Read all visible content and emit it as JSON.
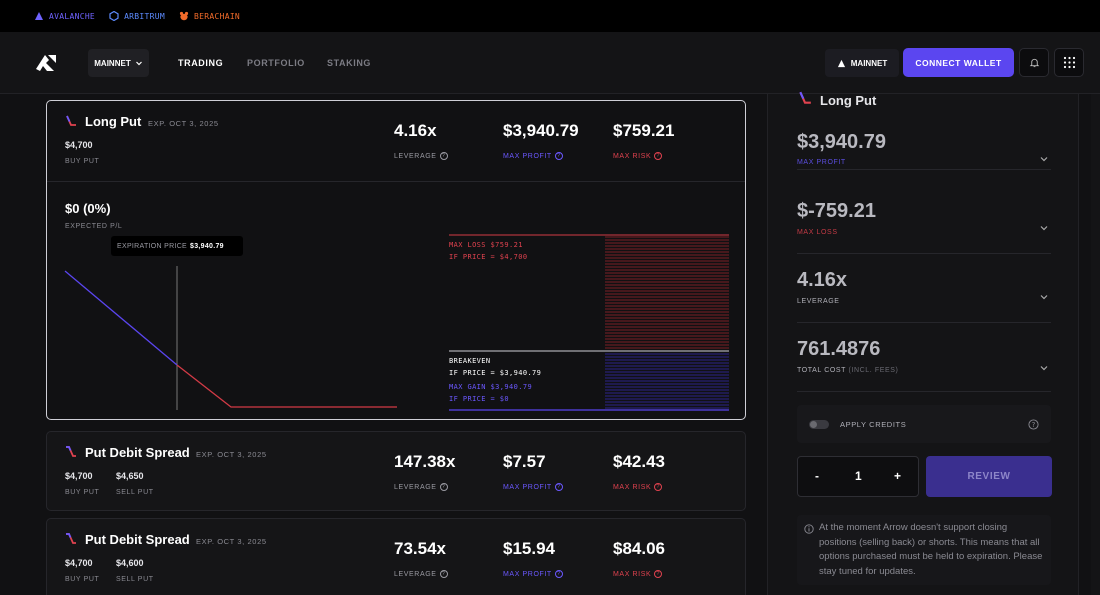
{
  "chains": [
    {
      "label": "AVALANCHE",
      "color": "#6f63ff",
      "icon": "avalanche-icon"
    },
    {
      "label": "ARBITRUM",
      "color": "#5d8bff",
      "icon": "arbitrum-icon"
    },
    {
      "label": "BERACHAIN",
      "color": "#f26b2a",
      "icon": "berachain-icon"
    }
  ],
  "header": {
    "network_button": "MAINNET",
    "nav": [
      "TRADING",
      "PORTFOLIO",
      "STAKING"
    ],
    "network_pill": "MAINNET",
    "connect": "CONNECT WALLET"
  },
  "cards": [
    {
      "title": "Long Put",
      "expiry": "EXP. OCT 3, 2025",
      "legs": [
        {
          "strike": "$4,700",
          "label": "BUY PUT"
        }
      ],
      "leverage": "4.16x",
      "leverage_label": "LEVERAGE",
      "max_profit": "$3,940.79",
      "max_profit_label": "MAX PROFIT",
      "max_risk": "$759.21",
      "max_risk_label": "MAX RISK"
    },
    {
      "title": "Put Debit Spread",
      "expiry": "EXP. OCT 3, 2025",
      "legs": [
        {
          "strike": "$4,700",
          "label": "BUY PUT"
        },
        {
          "strike": "$4,650",
          "label": "SELL PUT"
        }
      ],
      "leverage": "147.38x",
      "leverage_label": "LEVERAGE",
      "max_profit": "$7.57",
      "max_profit_label": "MAX PROFIT",
      "max_risk": "$42.43",
      "max_risk_label": "MAX RISK"
    },
    {
      "title": "Put Debit Spread",
      "expiry": "EXP. OCT 3, 2025",
      "legs": [
        {
          "strike": "$4,700",
          "label": "BUY PUT"
        },
        {
          "strike": "$4,600",
          "label": "SELL PUT"
        }
      ],
      "leverage": "73.54x",
      "leverage_label": "LEVERAGE",
      "max_profit": "$15.94",
      "max_profit_label": "MAX PROFIT",
      "max_risk": "$84.06",
      "max_risk_label": "MAX RISK"
    }
  ],
  "payoff": {
    "expected_pl": "$0 (0%)",
    "expected_pl_label": "EXPECTED P/L",
    "tooltip_label": "EXPIRATION PRICE",
    "tooltip_value": "$3,940.79",
    "max_loss_line1": "MAX LOSS $759.21",
    "max_loss_line2": "IF PRICE = $4,700",
    "breakeven_line1": "BREAKEVEN",
    "breakeven_line2": "IF PRICE = $3,940.79",
    "max_gain_line1": "MAX GAIN $3,940.79",
    "max_gain_line2": "IF PRICE = $0"
  },
  "panel": {
    "title": "Long Put",
    "rows": [
      {
        "value": "$3,940.79",
        "label": "MAX PROFIT",
        "color": "#6b58ff"
      },
      {
        "value": "$-759.21",
        "label": "MAX LOSS",
        "color": "#e0424f"
      },
      {
        "value": "4.16x",
        "label": "LEVERAGE",
        "color": "#b0b0b8"
      },
      {
        "value": "761.4876",
        "label": "TOTAL COST",
        "label_note": "(INCL. FEES)",
        "color": "#b0b0b8"
      }
    ],
    "apply_credits": "APPLY CREDITS",
    "minus": "-",
    "quantity": "1",
    "plus": "+",
    "review": "REVIEW",
    "notice": "At the moment Arrow doesn't support closing positions (selling back) or shorts. This means that all options purchased must be held to expiration. Please stay tuned for updates."
  }
}
